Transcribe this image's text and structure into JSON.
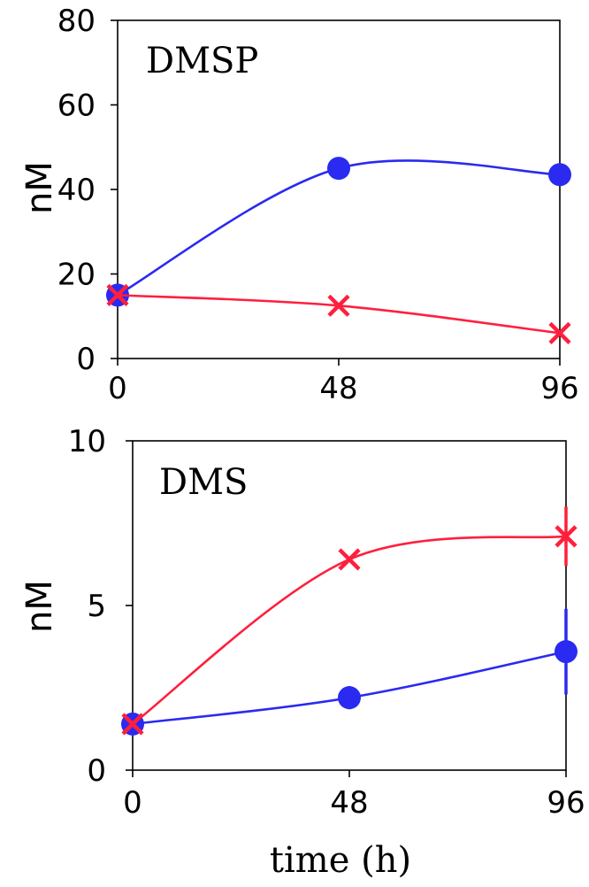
{
  "colors": {
    "series_blue": "#2a2af0",
    "series_red": "#ff1f3d"
  },
  "chart_data": [
    {
      "type": "line",
      "title": "DMSP",
      "ylabel": "nM",
      "xlabel": "",
      "x": [
        0,
        48,
        96
      ],
      "xticks": [
        "0",
        "48",
        "96"
      ],
      "ylim": [
        0,
        80
      ],
      "yticks": [
        "0",
        "20",
        "40",
        "60",
        "80"
      ],
      "grid": false,
      "series": [
        {
          "marker": "circle",
          "color": "#2a2af0",
          "values": [
            15,
            45,
            43.5
          ],
          "errors": [
            0,
            0,
            0
          ]
        },
        {
          "marker": "x",
          "color": "#ff1f3d",
          "values": [
            15,
            12.5,
            6
          ],
          "errors": [
            0,
            0,
            0
          ]
        }
      ]
    },
    {
      "type": "line",
      "title": "DMS",
      "ylabel": "nM",
      "xlabel": "time (h)",
      "x": [
        0,
        48,
        96
      ],
      "xticks": [
        "0",
        "48",
        "96"
      ],
      "ylim": [
        0,
        10
      ],
      "yticks": [
        "0",
        "5",
        "10"
      ],
      "grid": false,
      "series": [
        {
          "marker": "circle",
          "color": "#2a2af0",
          "values": [
            1.4,
            2.2,
            3.6
          ],
          "errors": [
            0,
            0.35,
            1.3
          ]
        },
        {
          "marker": "x",
          "color": "#ff1f3d",
          "values": [
            1.4,
            6.4,
            7.1
          ],
          "errors": [
            0,
            0,
            0.9
          ]
        }
      ]
    }
  ]
}
